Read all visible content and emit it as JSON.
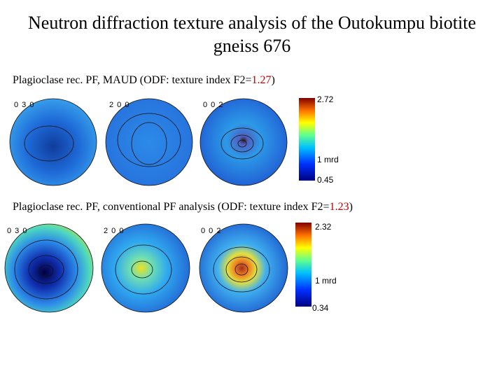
{
  "header": {
    "title": "Neutron diffraction texture analysis of the Outokumpu biotite gneiss 676"
  },
  "sections": [
    {
      "caption": {
        "prefix": "Plagioclase rec. PF, MAUD (ODF: texture index F2=",
        "index": "1.27",
        "suffix": ")"
      },
      "pole_figures": [
        {
          "label": "0 3 0"
        },
        {
          "label": "2 0 0"
        },
        {
          "label": "0 0 2"
        }
      ],
      "colorbar": {
        "max": "2.72",
        "mid": "1 mrd",
        "min": "0.45"
      }
    },
    {
      "caption": {
        "prefix": "Plagioclase rec. PF, conventional PF analysis (ODF: texture index F2=",
        "index": "1.23",
        "suffix": ")"
      },
      "pole_figures": [
        {
          "label": "0 3 0"
        },
        {
          "label": "2 0 0"
        },
        {
          "label": "0 0 2"
        }
      ],
      "colorbar": {
        "max": "2.32",
        "mid": "1 mrd",
        "min": "0.34"
      }
    }
  ]
}
